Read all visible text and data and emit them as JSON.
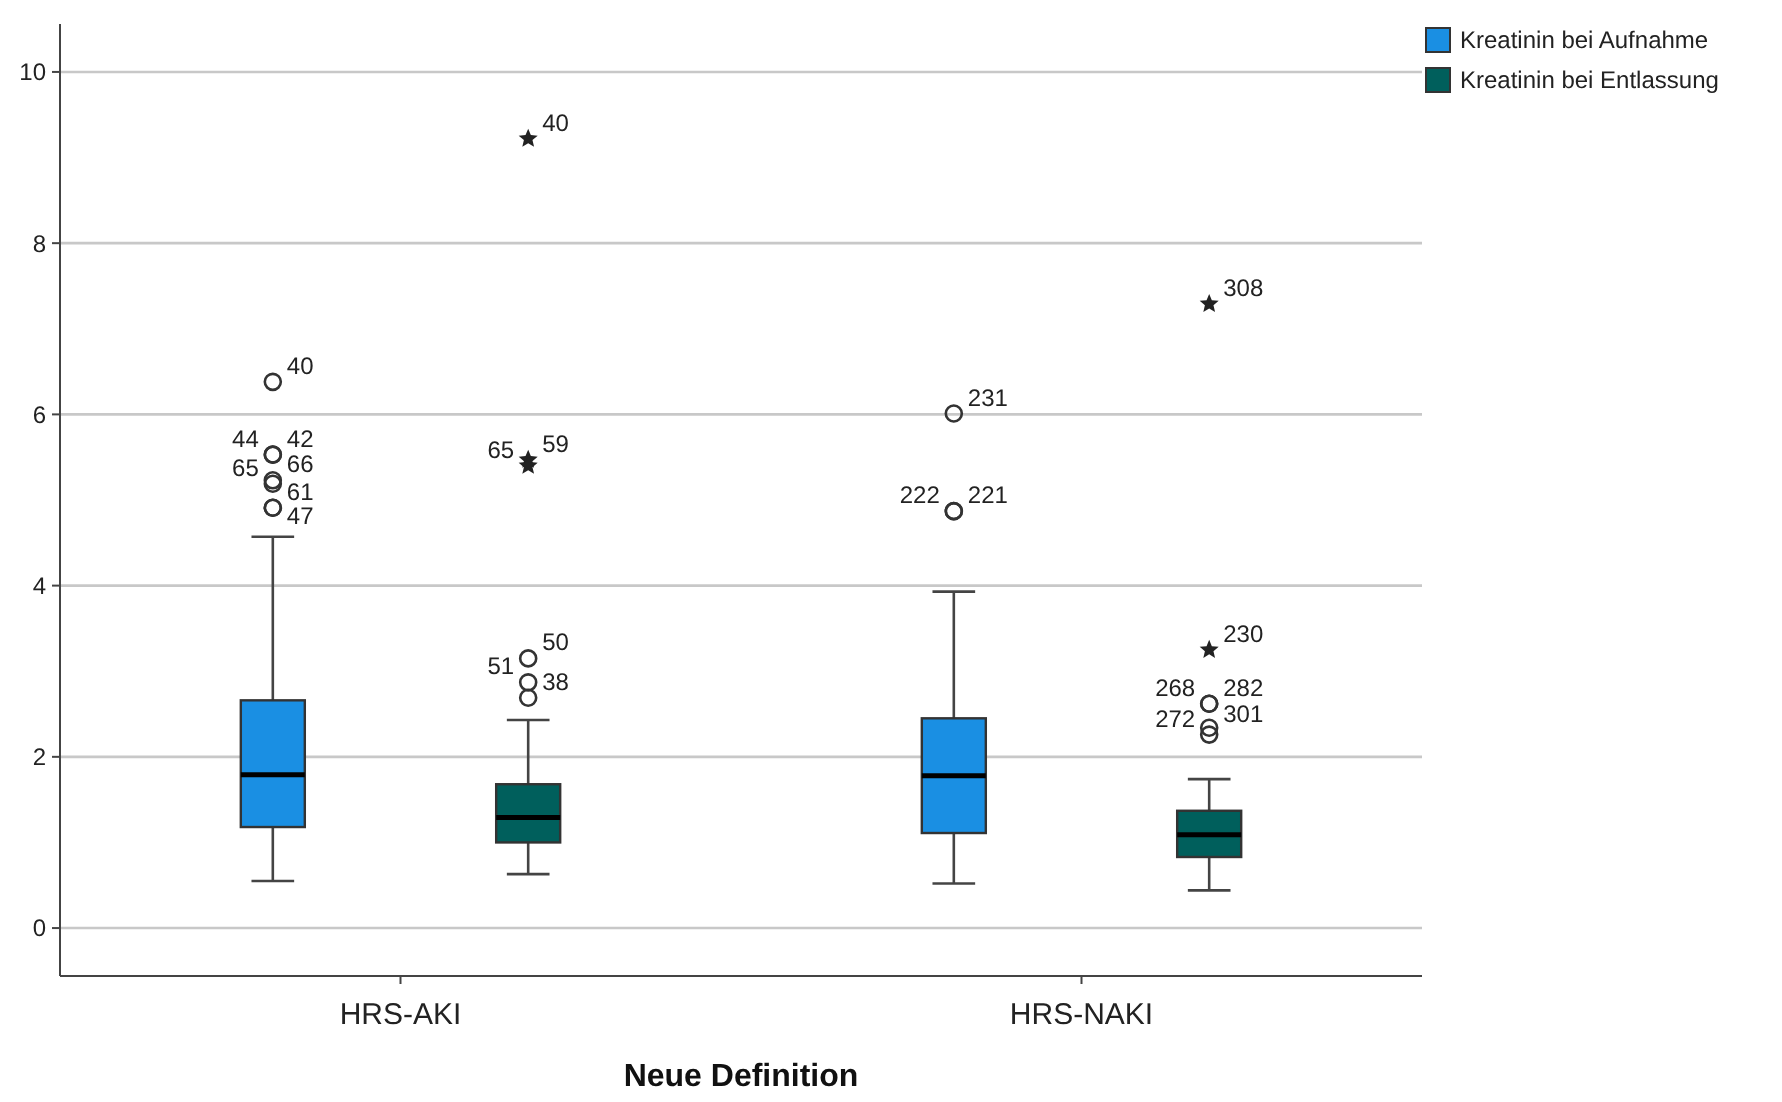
{
  "chart_data": {
    "type": "box",
    "xlabel": "Neue Definition",
    "categories": [
      "HRS-AKI",
      "HRS-NAKI"
    ],
    "series": [
      {
        "name": "Kreatinin bei Aufnahme",
        "color": "#1a8fe3",
        "boxes": [
          {
            "low": 0.55,
            "q1": 1.18,
            "median": 1.79,
            "q3": 2.66,
            "high": 4.57,
            "outliers": [
              6.38,
              5.53,
              5.53,
              5.23,
              5.19,
              4.91,
              4.91
            ]
          },
          {
            "low": 0.52,
            "q1": 1.11,
            "median": 1.78,
            "q3": 2.45,
            "high": 3.93,
            "outliers": [
              6.01,
              4.87,
              4.87
            ]
          }
        ]
      },
      {
        "name": "Kreatinin bei Entlassung",
        "color": "#005f5c",
        "boxes": [
          {
            "low": 0.63,
            "q1": 1.0,
            "median": 1.29,
            "q3": 1.68,
            "high": 2.43,
            "outliers": [
              9.22,
              5.47,
              5.4,
              3.15,
              2.87,
              2.69
            ]
          },
          {
            "low": 0.44,
            "q1": 0.83,
            "median": 1.09,
            "q3": 1.37,
            "high": 1.74,
            "outliers": [
              7.29,
              3.25,
              2.62,
              2.62,
              2.34,
              2.26
            ]
          }
        ]
      }
    ],
    "ylim": [
      -0.56,
      10.56
    ],
    "yticks": [
      0,
      2,
      4,
      6,
      8,
      10
    ],
    "grid": "y",
    "legend": "top right",
    "annotations": [
      "40",
      "42",
      "44",
      "66",
      "65",
      "61",
      "47",
      "231",
      "221",
      "222",
      "40",
      "59",
      "65",
      "50",
      "51",
      "38",
      "308",
      "230",
      "282",
      "268",
      "301",
      "272"
    ]
  }
}
